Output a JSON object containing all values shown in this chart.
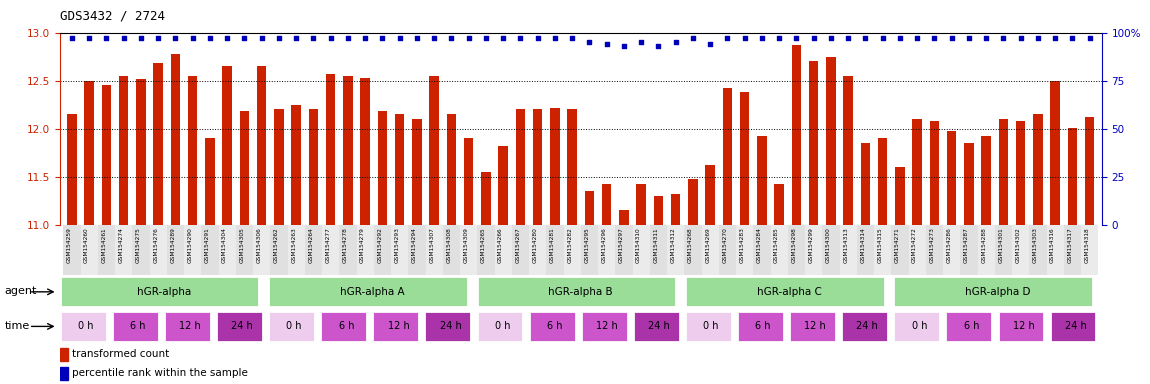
{
  "title": "GDS3432 / 2724",
  "samples": [
    "GSM154259",
    "GSM154260",
    "GSM154261",
    "GSM154274",
    "GSM154275",
    "GSM154276",
    "GSM154289",
    "GSM154290",
    "GSM154291",
    "GSM154304",
    "GSM154305",
    "GSM154306",
    "GSM154262",
    "GSM154263",
    "GSM154264",
    "GSM154277",
    "GSM154278",
    "GSM154279",
    "GSM154292",
    "GSM154293",
    "GSM154294",
    "GSM154307",
    "GSM154308",
    "GSM154309",
    "GSM154265",
    "GSM154266",
    "GSM154267",
    "GSM154280",
    "GSM154281",
    "GSM154282",
    "GSM154295",
    "GSM154296",
    "GSM154297",
    "GSM154310",
    "GSM154311",
    "GSM154312",
    "GSM154268",
    "GSM154269",
    "GSM154270",
    "GSM154283",
    "GSM154284",
    "GSM154285",
    "GSM154298",
    "GSM154299",
    "GSM154300",
    "GSM154313",
    "GSM154314",
    "GSM154315",
    "GSM154271",
    "GSM154272",
    "GSM154273",
    "GSM154286",
    "GSM154287",
    "GSM154288",
    "GSM154301",
    "GSM154302",
    "GSM154303",
    "GSM154316",
    "GSM154317",
    "GSM154318"
  ],
  "red_values": [
    12.15,
    12.5,
    12.45,
    12.55,
    12.52,
    12.68,
    12.78,
    12.55,
    11.9,
    12.65,
    12.18,
    12.65,
    12.2,
    12.25,
    12.2,
    12.57,
    12.55,
    12.53,
    12.18,
    12.15,
    12.1,
    12.55,
    12.15,
    11.9,
    11.55,
    11.82,
    12.2,
    12.2,
    12.22,
    12.2,
    11.35,
    11.42,
    11.15,
    11.42,
    11.3,
    11.32,
    11.48,
    11.62,
    12.42,
    12.38,
    11.92,
    11.42,
    12.87,
    12.7,
    12.75,
    12.55,
    11.85,
    11.9,
    11.6,
    12.1,
    12.08,
    11.98,
    11.85,
    11.92,
    12.1,
    12.08,
    12.15,
    12.5,
    12.01,
    12.12
  ],
  "blue_values": [
    97,
    97,
    97,
    97,
    97,
    97,
    97,
    97,
    97,
    97,
    97,
    97,
    97,
    97,
    97,
    97,
    97,
    97,
    97,
    97,
    97,
    97,
    97,
    97,
    97,
    97,
    97,
    97,
    97,
    97,
    95,
    94,
    93,
    95,
    93,
    95,
    97,
    94,
    97,
    97,
    97,
    97,
    97,
    97,
    97,
    97,
    97,
    97,
    97,
    97,
    97,
    97,
    97,
    97,
    97,
    97,
    97,
    97,
    97,
    97
  ],
  "ylim_left": [
    11.0,
    13.0
  ],
  "ylim_right": [
    0,
    100
  ],
  "yticks_left": [
    11.0,
    11.5,
    12.0,
    12.5,
    13.0
  ],
  "yticks_right": [
    0,
    25,
    50,
    75,
    100
  ],
  "bar_color": "#cc2200",
  "dot_color": "#0000bb",
  "left_yaxis_color": "#cc2200",
  "right_yaxis_color": "#0000bb",
  "agent_color": "#99dd99",
  "time_colors": [
    "#eeccee",
    "#cc55cc",
    "#cc55cc",
    "#aa33aa"
  ],
  "time_labels": [
    "0 h",
    "6 h",
    "12 h",
    "24 h"
  ],
  "group_labels": [
    "hGR-alpha",
    "hGR-alpha A",
    "hGR-alpha B",
    "hGR-alpha C",
    "hGR-alpha D"
  ],
  "n_groups": 5,
  "samples_per_group": 12,
  "time_per_group": 4,
  "samples_per_time": 3
}
